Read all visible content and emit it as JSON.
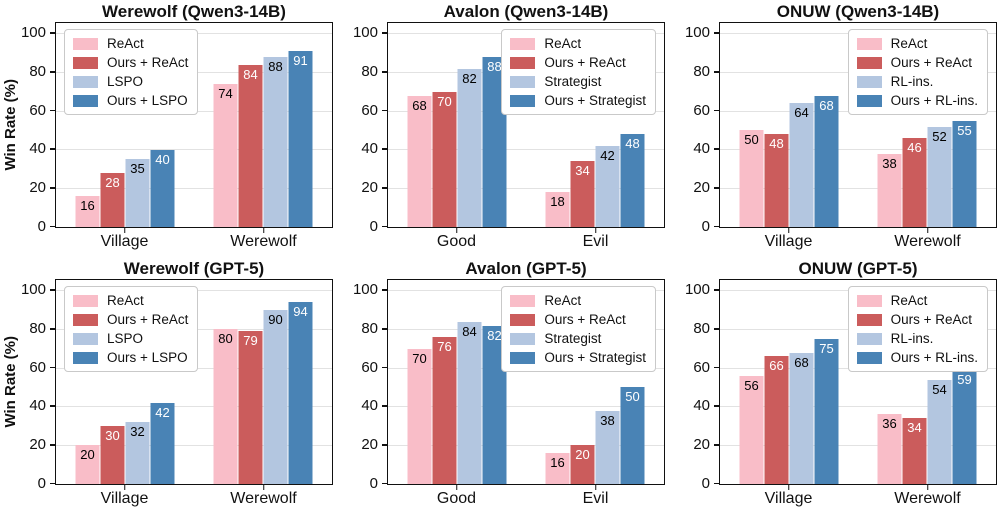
{
  "figure": {
    "background": "#ffffff",
    "rows": 2,
    "cols": 3
  },
  "colors": {
    "series": [
      "#f9bdc8",
      "#cb5c5c",
      "#b3c6e0",
      "#4983b5"
    ],
    "value_label": [
      "#000000",
      "#ffffff",
      "#000000",
      "#ffffff"
    ],
    "grid": "#e2e2e2",
    "spine": "#111111",
    "legend_border": "#c9c9c9",
    "legend_bg": "#ffffff"
  },
  "axis": {
    "ylabel": "Win Rate (%)",
    "yticks": [
      0,
      20,
      40,
      60,
      80,
      100
    ],
    "ylim": [
      0,
      105
    ],
    "grid": "horizontal"
  },
  "chart_data": [
    {
      "type": "bar",
      "title": "Werewolf (Qwen3-14B)",
      "ylabel": "Win Rate (%)",
      "legend_position": "upper-left",
      "categories": [
        "Village",
        "Werewolf"
      ],
      "series": [
        {
          "name": "ReAct",
          "values": [
            16,
            74
          ]
        },
        {
          "name": "Ours + ReAct",
          "values": [
            28,
            84
          ]
        },
        {
          "name": "LSPO",
          "values": [
            35,
            88
          ]
        },
        {
          "name": "Ours + LSPO",
          "values": [
            40,
            91
          ]
        }
      ],
      "ylim": [
        0,
        105
      ],
      "yticks": [
        0,
        20,
        40,
        60,
        80,
        100
      ]
    },
    {
      "type": "bar",
      "title": "Avalon (Qwen3-14B)",
      "ylabel": "",
      "legend_position": "upper-right",
      "categories": [
        "Good",
        "Evil"
      ],
      "series": [
        {
          "name": "ReAct",
          "values": [
            68,
            18
          ]
        },
        {
          "name": "Ours + ReAct",
          "values": [
            70,
            34
          ]
        },
        {
          "name": "Strategist",
          "values": [
            82,
            42
          ]
        },
        {
          "name": "Ours + Strategist",
          "values": [
            88,
            48
          ]
        }
      ],
      "ylim": [
        0,
        105
      ],
      "yticks": [
        0,
        20,
        40,
        60,
        80,
        100
      ]
    },
    {
      "type": "bar",
      "title": "ONUW (Qwen3-14B)",
      "ylabel": "",
      "legend_position": "upper-right",
      "categories": [
        "Village",
        "Werewolf"
      ],
      "series": [
        {
          "name": "ReAct",
          "values": [
            50,
            38
          ]
        },
        {
          "name": "Ours + ReAct",
          "values": [
            48,
            46
          ]
        },
        {
          "name": "RL-ins.",
          "values": [
            64,
            52
          ]
        },
        {
          "name": "Ours + RL-ins.",
          "values": [
            68,
            55
          ]
        }
      ],
      "ylim": [
        0,
        105
      ],
      "yticks": [
        0,
        20,
        40,
        60,
        80,
        100
      ]
    },
    {
      "type": "bar",
      "title": "Werewolf (GPT-5)",
      "ylabel": "Win Rate (%)",
      "legend_position": "upper-left",
      "categories": [
        "Village",
        "Werewolf"
      ],
      "series": [
        {
          "name": "ReAct",
          "values": [
            20,
            80
          ]
        },
        {
          "name": "Ours + ReAct",
          "values": [
            30,
            79
          ]
        },
        {
          "name": "LSPO",
          "values": [
            32,
            90
          ]
        },
        {
          "name": "Ours + LSPO",
          "values": [
            42,
            94
          ]
        }
      ],
      "ylim": [
        0,
        105
      ],
      "yticks": [
        0,
        20,
        40,
        60,
        80,
        100
      ]
    },
    {
      "type": "bar",
      "title": "Avalon (GPT-5)",
      "ylabel": "",
      "legend_position": "upper-right",
      "categories": [
        "Good",
        "Evil"
      ],
      "series": [
        {
          "name": "ReAct",
          "values": [
            70,
            16
          ]
        },
        {
          "name": "Ours + ReAct",
          "values": [
            76,
            20
          ]
        },
        {
          "name": "Strategist",
          "values": [
            84,
            38
          ]
        },
        {
          "name": "Ours + Strategist",
          "values": [
            82,
            50
          ]
        }
      ],
      "ylim": [
        0,
        105
      ],
      "yticks": [
        0,
        20,
        40,
        60,
        80,
        100
      ]
    },
    {
      "type": "bar",
      "title": "ONUW (GPT-5)",
      "ylabel": "",
      "legend_position": "upper-right",
      "categories": [
        "Village",
        "Werewolf"
      ],
      "series": [
        {
          "name": "ReAct",
          "values": [
            56,
            36
          ]
        },
        {
          "name": "Ours + ReAct",
          "values": [
            66,
            34
          ]
        },
        {
          "name": "RL-ins.",
          "values": [
            68,
            54
          ]
        },
        {
          "name": "Ours + RL-ins.",
          "values": [
            75,
            59
          ]
        }
      ],
      "ylim": [
        0,
        105
      ],
      "yticks": [
        0,
        20,
        40,
        60,
        80,
        100
      ]
    }
  ]
}
